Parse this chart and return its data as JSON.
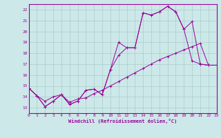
{
  "xlabel": "Windchill (Refroidissement éolien,°C)",
  "bg_color": "#cce8e8",
  "grid_color": "#aacccc",
  "line_color": "#990099",
  "xlim": [
    0,
    23
  ],
  "ylim": [
    12.5,
    22.5
  ],
  "xticks": [
    0,
    1,
    2,
    3,
    4,
    5,
    6,
    7,
    8,
    9,
    10,
    11,
    12,
    13,
    14,
    15,
    16,
    17,
    18,
    19,
    20,
    21,
    22,
    23
  ],
  "yticks": [
    13,
    14,
    15,
    16,
    17,
    18,
    19,
    20,
    21,
    22
  ],
  "series1_x": [
    0,
    1,
    2,
    3,
    4,
    5,
    6,
    7,
    8,
    9,
    10,
    11,
    12,
    13,
    14,
    15,
    16,
    17,
    18,
    19,
    20,
    21,
    22,
    23
  ],
  "series1_y": [
    14.8,
    14.1,
    13.1,
    13.6,
    14.2,
    13.3,
    13.6,
    14.6,
    14.7,
    14.2,
    16.5,
    19.0,
    18.5,
    18.5,
    21.7,
    21.5,
    21.8,
    22.3,
    21.8,
    20.2,
    17.3,
    17.0,
    16.9,
    16.9
  ],
  "series2_x": [
    0,
    1,
    2,
    3,
    4,
    5,
    6,
    7,
    8,
    9,
    10,
    11,
    12,
    13,
    14,
    15,
    16,
    17,
    18,
    19,
    20,
    21,
    22,
    23
  ],
  "series2_y": [
    14.8,
    14.1,
    13.1,
    13.6,
    14.2,
    13.3,
    13.6,
    14.6,
    14.7,
    14.2,
    16.5,
    17.8,
    18.5,
    18.5,
    21.7,
    21.5,
    21.8,
    22.3,
    21.8,
    20.2,
    20.9,
    17.0,
    16.9,
    16.9
  ],
  "series3_x": [
    0,
    1,
    2,
    3,
    4,
    5,
    6,
    7,
    8,
    9,
    10,
    11,
    12,
    13,
    14,
    15,
    16,
    17,
    18,
    19,
    20,
    21,
    22,
    23
  ],
  "series3_y": [
    14.8,
    14.1,
    13.6,
    14.0,
    14.2,
    13.5,
    13.8,
    13.9,
    14.3,
    14.6,
    15.0,
    15.4,
    15.8,
    16.2,
    16.6,
    17.0,
    17.4,
    17.7,
    18.0,
    18.3,
    18.6,
    18.9,
    16.9,
    16.9
  ]
}
